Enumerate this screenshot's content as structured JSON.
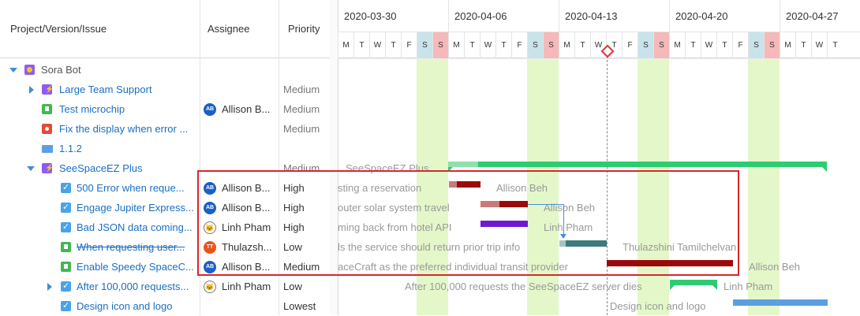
{
  "columns": {
    "project": "Project/Version/Issue",
    "assignee": "Assignee",
    "priority": "Priority"
  },
  "weeks": [
    "2020-03-30",
    "2020-04-06",
    "2020-04-13",
    "2020-04-20",
    "2020-04-27"
  ],
  "day_letters": [
    "M",
    "T",
    "W",
    "T",
    "F",
    "S",
    "S",
    "M",
    "T",
    "W",
    "T",
    "F",
    "S",
    "S",
    "M",
    "T",
    "W",
    "T",
    "F",
    "S",
    "S",
    "M",
    "T",
    "W",
    "T",
    "F",
    "S",
    "S",
    "M",
    "T",
    "W",
    "T"
  ],
  "rows": [
    {
      "name": "Sora Bot",
      "assignee": "",
      "avatar": "",
      "priority": ""
    },
    {
      "name": "Large Team Support",
      "assignee": "",
      "avatar": "",
      "priority": "Medium"
    },
    {
      "name": "Test microchip",
      "assignee": "Allison B...",
      "avatar": "AB",
      "priority": "Medium"
    },
    {
      "name": "Fix the display when error ...",
      "assignee": "",
      "avatar": "",
      "priority": "Medium"
    },
    {
      "name": "1.1.2",
      "assignee": "",
      "avatar": "",
      "priority": ""
    },
    {
      "name": "SeeSpaceEZ Plus",
      "assignee": "",
      "avatar": "",
      "priority": "Medium"
    },
    {
      "name": "500 Error when reque...",
      "assignee": "Allison B...",
      "avatar": "AB",
      "priority": "High"
    },
    {
      "name": "Engage Jupiter Express...",
      "assignee": "Allison B...",
      "avatar": "AB",
      "priority": "High"
    },
    {
      "name": "Bad JSON data coming...",
      "assignee": "Linh Pham",
      "avatar": "cat",
      "priority": "High"
    },
    {
      "name": "When requesting user...",
      "assignee": "Thulazsh...",
      "avatar": "TT",
      "priority": "Low"
    },
    {
      "name": "Enable Speedy SpaceC...",
      "assignee": "Allison B...",
      "avatar": "AB",
      "priority": "Medium"
    },
    {
      "name": "After 100,000 requests...",
      "assignee": "Linh Pham",
      "avatar": "cat",
      "priority": "Low"
    },
    {
      "name": "Design icon and logo",
      "assignee": "",
      "avatar": "",
      "priority": "Lowest"
    }
  ],
  "gantt_labels": {
    "r5": "SeeSpaceEZ Plus",
    "r6": "sting a reservation",
    "r6_who": "Allison Beh",
    "r7": "outer solar system travel",
    "r7_who": "Allison Beh",
    "r8": "ming back from hotel API",
    "r8_who": "Linh Pham",
    "r9": "ls the service should return prior trip info",
    "r9_who": "Thulazshini Tamilchelvan",
    "r10": "aceCraft as the preferred individual transit provider",
    "r10_who": "Allison Beh",
    "r11": "After 100,000 requests the SeeSpaceEZ server dies",
    "r11_who": "Linh Pham",
    "r12": "Design icon and logo"
  },
  "colors": {
    "weekend_green": "#e4f7c9",
    "sat_blue": "#c9e3ea",
    "sun_red": "#f6b9b9",
    "highlight": "#d9262c",
    "today_marker": "#e0343a"
  }
}
